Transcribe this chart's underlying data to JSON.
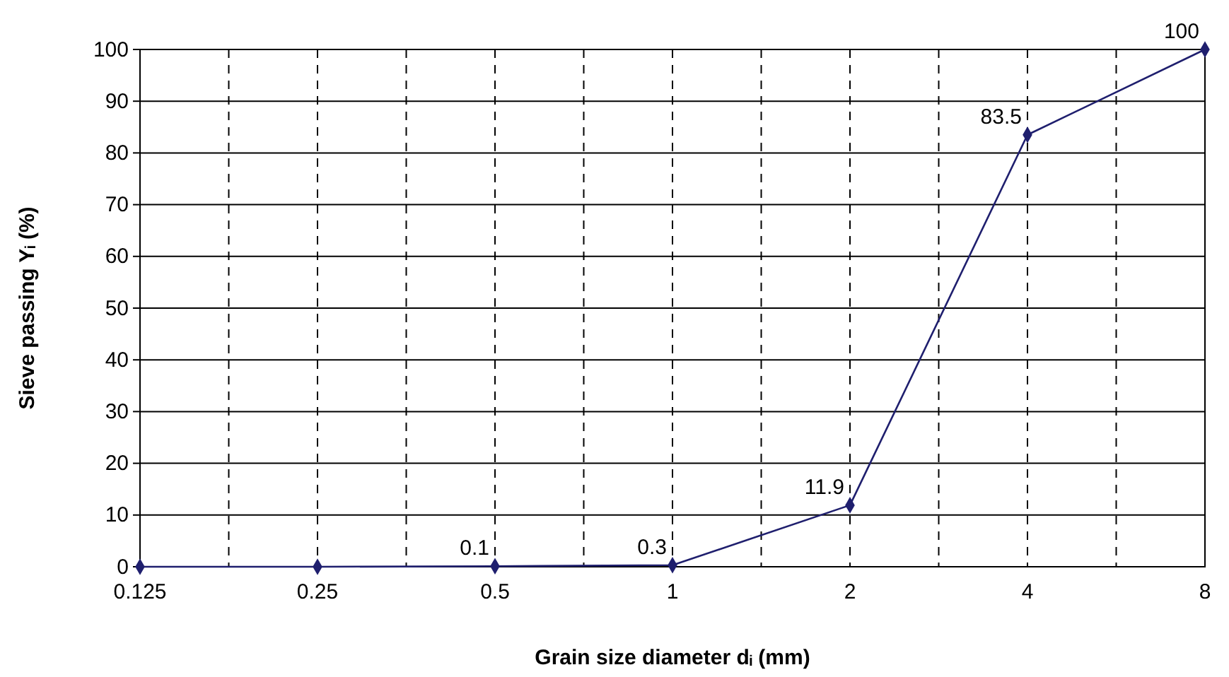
{
  "chart_data": {
    "type": "line",
    "xlabel": "Grain size diameter dᵢ (mm)",
    "ylabel": "Sieve passing Yᵢ (%)",
    "categories": [
      "0.125",
      "0.25",
      "0.5",
      "1",
      "2",
      "4",
      "8"
    ],
    "series": [
      {
        "color": "#1f1f6e",
        "values": [
          0,
          0,
          0.1,
          0.3,
          11.9,
          83.5,
          100
        ],
        "value_labels": [
          null,
          null,
          "0.1",
          "0.3",
          "11.9",
          "83.5",
          "100"
        ]
      }
    ],
    "ylim": [
      0,
      100
    ],
    "yticks": [
      0,
      10,
      20,
      30,
      40,
      50,
      60,
      70,
      80,
      90,
      100
    ],
    "grid": true,
    "marker": "diamond",
    "line_style": "solid"
  }
}
